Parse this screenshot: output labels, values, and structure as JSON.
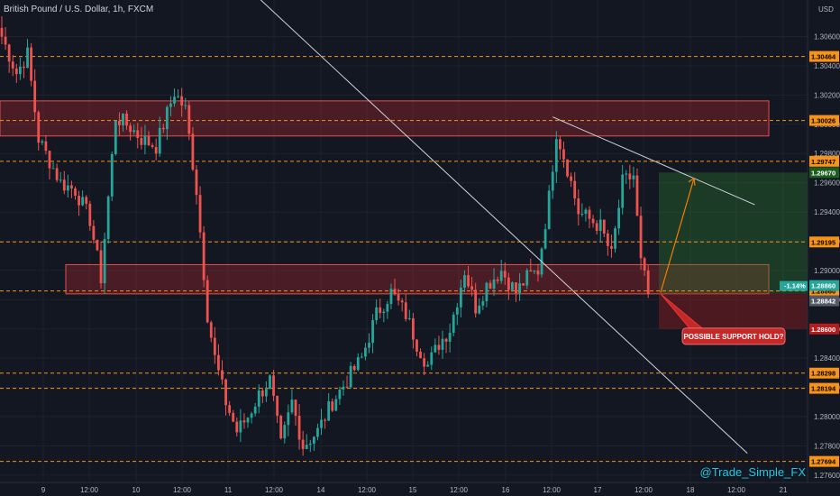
{
  "chart_title": "British Pound / U.S. Dollar, 1h, FXCM",
  "currency": "USD",
  "watermark": "@Trade_Simple_FX",
  "annotation": "POSSIBLE SUPPORT HOLD?",
  "colors": {
    "background": "#131722",
    "up": "#26a69a",
    "down": "#ef5350",
    "level": "#f7931a",
    "zone": "#b2262c",
    "target": "#2e7d32",
    "stop": "#b71c1c"
  },
  "chart_data": {
    "type": "candlestick",
    "title": "British Pound / U.S. Dollar, 1h, FXCM",
    "ylim": [
      1.2755,
      1.3085
    ],
    "y_ticks": [
      "1.30600",
      "1.30400",
      "1.30200",
      "1.30000",
      "1.29800",
      "1.29600",
      "1.29400",
      "1.29200",
      "1.29000",
      "1.28800",
      "1.28600",
      "1.28400",
      "1.28200",
      "1.28000",
      "1.27800",
      "1.27600"
    ],
    "x_ticks": [
      "9",
      "12:00",
      "10",
      "12:00",
      "11",
      "12:00",
      "14",
      "12:00",
      "15",
      "12:00",
      "16",
      "12:00",
      "17",
      "12:00",
      "18",
      "12:00",
      "21"
    ],
    "levels": [
      {
        "price": 1.30464,
        "label": "1.30464"
      },
      {
        "price": 1.30026,
        "label": "1.30026"
      },
      {
        "price": 1.29747,
        "label": "1.29747"
      },
      {
        "price": 1.29195,
        "label": "1.29195"
      },
      {
        "price": 1.2886,
        "label": "1.28860"
      },
      {
        "price": 1.28298,
        "label": "1.28298"
      },
      {
        "price": 1.28194,
        "label": "1.28194"
      },
      {
        "price": 1.27694,
        "label": "1.27694"
      }
    ],
    "zones": [
      {
        "from": 1.2992,
        "to": 1.3016
      },
      {
        "from": 1.2884,
        "to": 1.2904
      }
    ],
    "trendlines": [
      {
        "from": {
          "bar": 0,
          "price": 1.325
        },
        "to": {
          "bar": 203,
          "price": 1.2775
        }
      },
      {
        "from": {
          "bar": 150,
          "price": 1.3005
        },
        "to": {
          "bar": 205,
          "price": 1.2945
        }
      }
    ],
    "position": {
      "entry": 1.28842,
      "target": 1.2967,
      "stop": 1.286,
      "target_label": "1.29670",
      "entry_label": "1.28842",
      "stop_label": "1.28600",
      "change_label": "-1.14%",
      "current_label": "1.28860"
    },
    "waypoints": [
      [
        0,
        1.306
      ],
      [
        4,
        1.3035
      ],
      [
        7,
        1.3048
      ],
      [
        10,
        1.299
      ],
      [
        13,
        1.2975
      ],
      [
        16,
        1.296
      ],
      [
        20,
        1.2955
      ],
      [
        24,
        1.2935
      ],
      [
        27,
        1.2895
      ],
      [
        29,
        1.295
      ],
      [
        31,
        1.3005
      ],
      [
        35,
        1.2998
      ],
      [
        38,
        1.299
      ],
      [
        42,
        1.2985
      ],
      [
        47,
        1.3022
      ],
      [
        50,
        1.301
      ],
      [
        53,
        1.2955
      ],
      [
        56,
        1.287
      ],
      [
        58,
        1.284
      ],
      [
        61,
        1.281
      ],
      [
        64,
        1.279
      ],
      [
        67,
        1.28
      ],
      [
        70,
        1.2815
      ],
      [
        73,
        1.2825
      ],
      [
        76,
        1.278
      ],
      [
        79,
        1.281
      ],
      [
        82,
        1.278
      ],
      [
        86,
        1.279
      ],
      [
        90,
        1.281
      ],
      [
        94,
        1.2825
      ],
      [
        98,
        1.284
      ],
      [
        102,
        1.287
      ],
      [
        106,
        1.2885
      ],
      [
        110,
        1.287
      ],
      [
        113,
        1.285
      ],
      [
        116,
        1.2835
      ],
      [
        119,
        1.285
      ],
      [
        122,
        1.286
      ],
      [
        126,
        1.29
      ],
      [
        129,
        1.2875
      ],
      [
        132,
        1.289
      ],
      [
        136,
        1.29
      ],
      [
        140,
        1.2885
      ],
      [
        143,
        1.2895
      ],
      [
        146,
        1.29
      ],
      [
        149,
        1.295
      ],
      [
        151,
        1.2995
      ],
      [
        154,
        1.297
      ],
      [
        157,
        1.294
      ],
      [
        160,
        1.2935
      ],
      [
        163,
        1.293
      ],
      [
        166,
        1.291
      ],
      [
        169,
        1.296
      ],
      [
        172,
        1.2965
      ],
      [
        174,
        1.2905
      ],
      [
        176,
        1.2885
      ]
    ]
  }
}
